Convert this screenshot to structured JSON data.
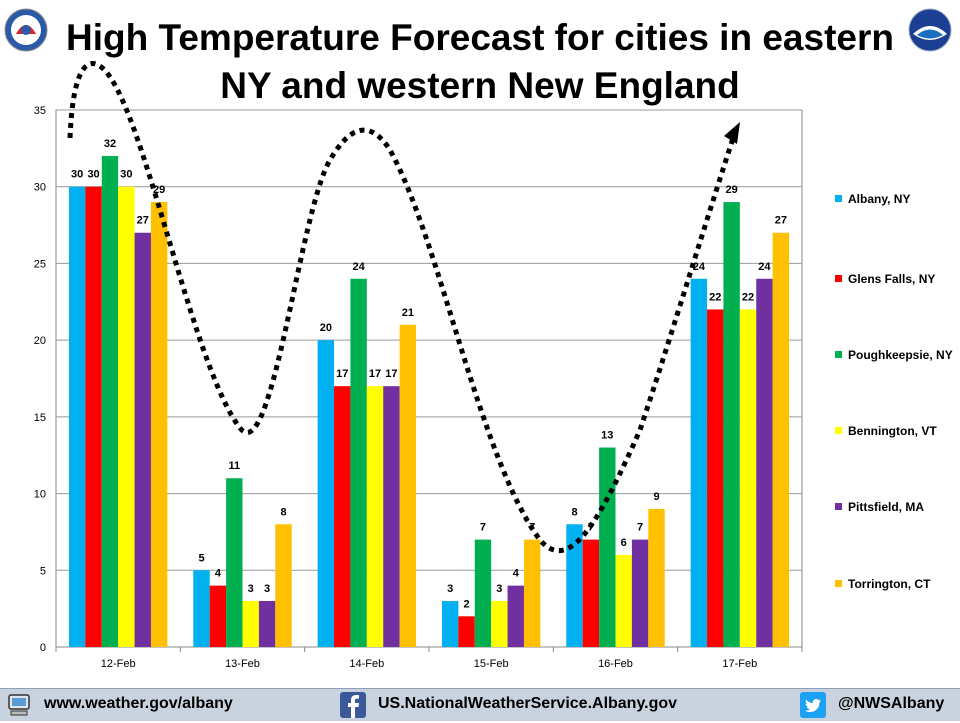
{
  "title_line1": "High Temperature Forecast for cities in eastern",
  "title_line2": "NY and western New England",
  "logos": {
    "left": "nws-logo",
    "right": "noaa-logo"
  },
  "chart_data": {
    "type": "bar",
    "title": "High Temperature Forecast for cities in eastern NY and western New England",
    "xlabel": "",
    "ylabel": "",
    "ylim": [
      0,
      35
    ],
    "yticks": [
      0,
      5,
      10,
      15,
      20,
      25,
      30,
      35
    ],
    "grid": true,
    "legend_position": "right",
    "categories": [
      "12-Feb",
      "13-Feb",
      "14-Feb",
      "15-Feb",
      "16-Feb",
      "17-Feb"
    ],
    "series": [
      {
        "name": "Albany, NY",
        "color": "#00b0f0",
        "values": [
          30,
          5,
          20,
          3,
          8,
          24
        ]
      },
      {
        "name": "Glens Falls, NY",
        "color": "#ff0000",
        "values": [
          30,
          4,
          17,
          2,
          7,
          22
        ]
      },
      {
        "name": "Poughkeepsie, NY",
        "color": "#00b050",
        "values": [
          32,
          11,
          24,
          7,
          13,
          29
        ]
      },
      {
        "name": "Bennington, VT",
        "color": "#ffff00",
        "values": [
          30,
          3,
          17,
          3,
          6,
          22
        ]
      },
      {
        "name": "Pittsfield, MA",
        "color": "#7030a0",
        "values": [
          27,
          3,
          17,
          4,
          7,
          24
        ]
      },
      {
        "name": "Torrington, CT",
        "color": "#ffc000",
        "values": [
          29,
          8,
          21,
          7,
          9,
          27
        ]
      }
    ],
    "annotations": [
      "dotted trend wave arrow"
    ]
  },
  "footer": {
    "website": "www.weather.gov/albany",
    "facebook": "US.NationalWeatherService.Albany.gov",
    "twitter": "@NWSAlbany"
  }
}
